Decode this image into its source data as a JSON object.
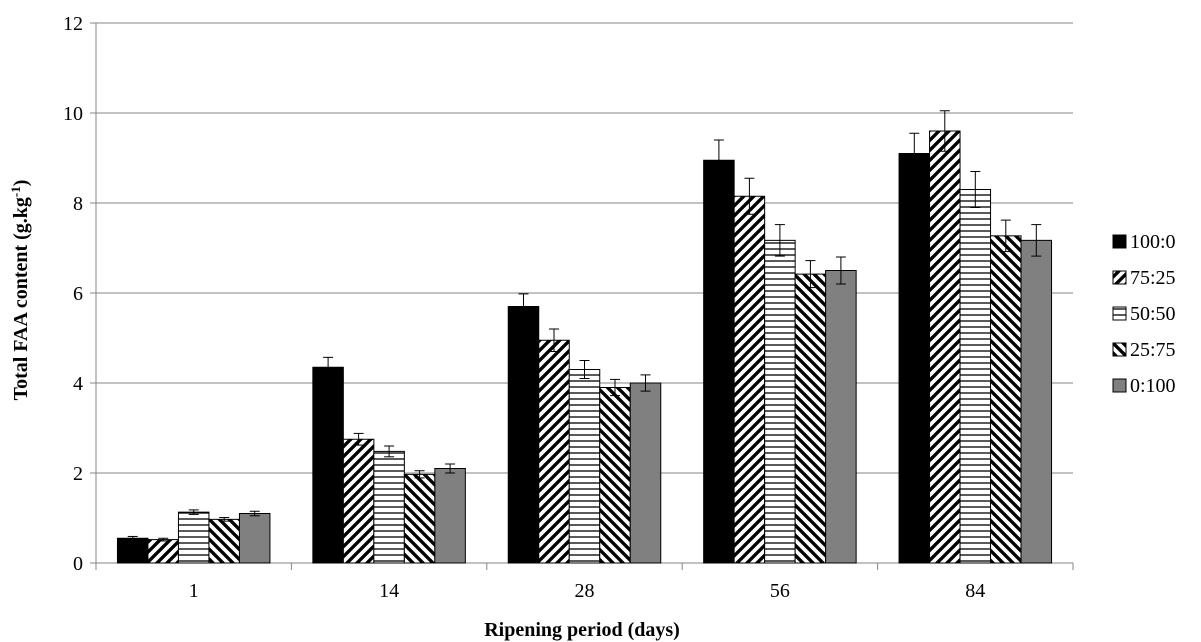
{
  "chart_data": {
    "type": "bar",
    "title": "",
    "xlabel": "Ripening period (days)",
    "ylabel_main": "Total FAA content (g.kg",
    "ylabel_sup": "-1",
    "ylabel_end": ")",
    "categories": [
      "1",
      "14",
      "28",
      "56",
      "84"
    ],
    "ylim": [
      0,
      12
    ],
    "yticks": [
      "0",
      "2",
      "4",
      "6",
      "8",
      "10",
      "12"
    ],
    "grid": true,
    "legend_position": "right",
    "error_bars": true,
    "series": [
      {
        "name": "100:0",
        "pattern": "solid-black",
        "values": [
          0.55,
          4.35,
          5.7,
          8.95,
          9.1
        ],
        "errors": [
          0.04,
          0.22,
          0.28,
          0.45,
          0.45
        ]
      },
      {
        "name": "75:25",
        "pattern": "diag-forward",
        "values": [
          0.52,
          2.75,
          4.95,
          8.15,
          9.6
        ],
        "errors": [
          0.03,
          0.13,
          0.25,
          0.4,
          0.45
        ]
      },
      {
        "name": "50:50",
        "pattern": "horizontal",
        "values": [
          1.13,
          2.48,
          4.3,
          7.17,
          8.3
        ],
        "errors": [
          0.05,
          0.12,
          0.2,
          0.35,
          0.4
        ]
      },
      {
        "name": "25:75",
        "pattern": "diag-backward",
        "values": [
          0.97,
          1.97,
          3.9,
          6.42,
          7.27
        ],
        "errors": [
          0.04,
          0.08,
          0.18,
          0.3,
          0.35
        ]
      },
      {
        "name": "0:100",
        "pattern": "solid-gray",
        "values": [
          1.1,
          2.1,
          4.0,
          6.5,
          7.17
        ],
        "errors": [
          0.05,
          0.1,
          0.18,
          0.3,
          0.35
        ]
      }
    ]
  }
}
